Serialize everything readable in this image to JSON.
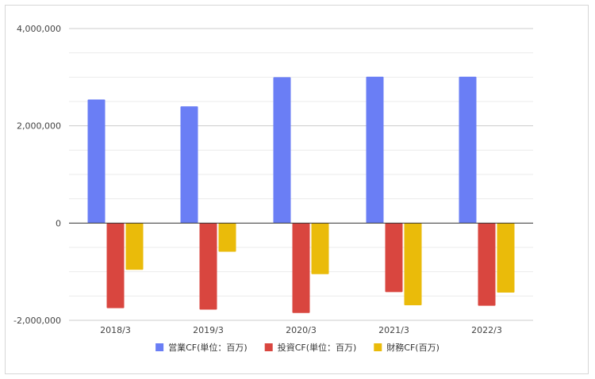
{
  "chart_data": {
    "type": "bar",
    "categories": [
      "2018/3",
      "2019/3",
      "2020/3",
      "2021/3",
      "2022/3"
    ],
    "series": [
      {
        "name": "営業CF(単位：百万)",
        "color": "#6a7ef5",
        "values": [
          2540000,
          2400000,
          3000000,
          3010000,
          3010000
        ]
      },
      {
        "name": "投資CF(単位：百万)",
        "color": "#d9463f",
        "values": [
          -1750000,
          -1780000,
          -1850000,
          -1420000,
          -1700000
        ]
      },
      {
        "name": "財務CF(百万)",
        "color": "#eabb0a",
        "values": [
          -960000,
          -590000,
          -1050000,
          -1690000,
          -1430000
        ]
      }
    ],
    "ylim": [
      -2000000,
      4000000
    ],
    "y_ticks": [
      {
        "value": -2000000,
        "label": "-2,000,000"
      },
      {
        "value": 0,
        "label": "0"
      },
      {
        "value": 2000000,
        "label": "2,000,000"
      },
      {
        "value": 4000000,
        "label": "4,000,000"
      }
    ],
    "minor_gridlines": true,
    "legend_position": "bottom"
  }
}
